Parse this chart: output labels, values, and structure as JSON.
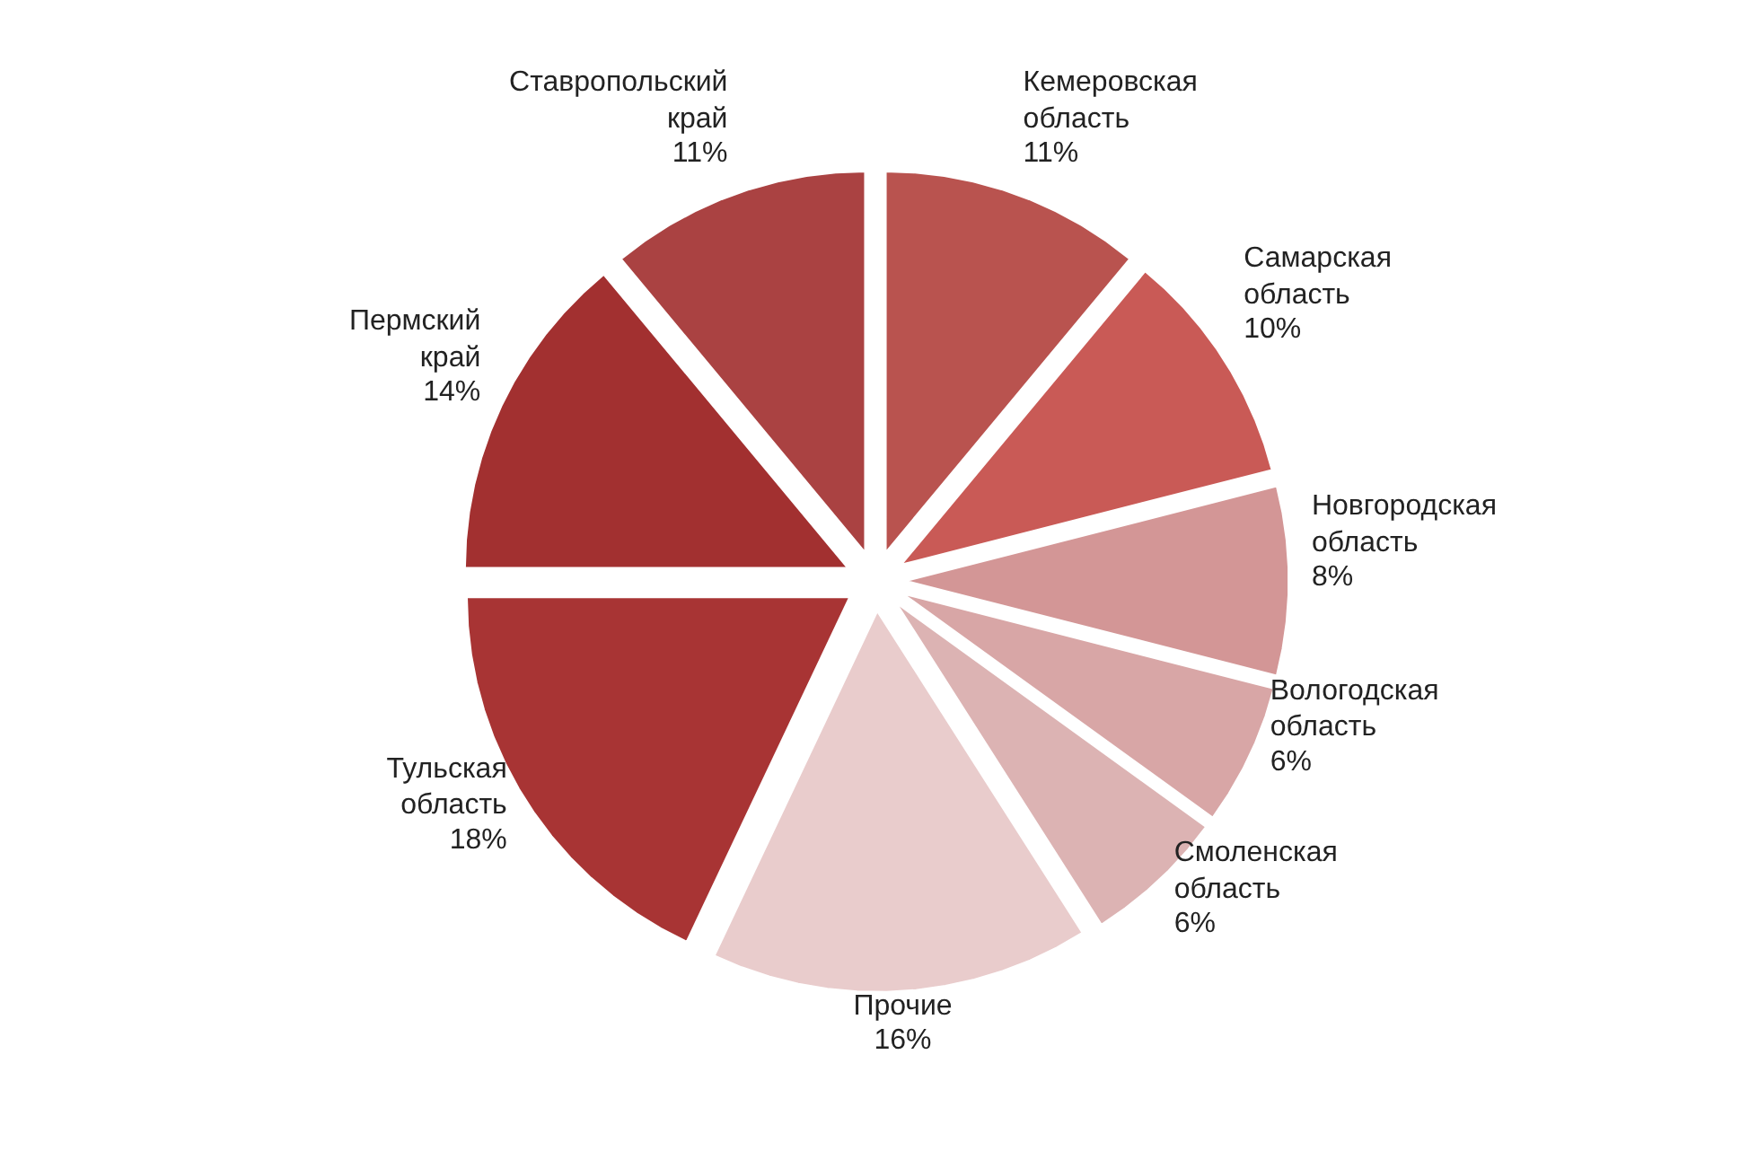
{
  "chart_data": {
    "type": "pie",
    "categories": [
      "Кемеровская область",
      "Самарская область",
      "Новгородская область",
      "Вологодская область",
      "Смоленская область",
      "Прочие",
      "Тульская область",
      "Пермский край",
      "Ставропольский край"
    ],
    "values": [
      11,
      10,
      8,
      6,
      6,
      16,
      18,
      14,
      11
    ],
    "colors": [
      "#b9534f",
      "#c95a56",
      "#d39696",
      "#d8a6a6",
      "#dcb3b3",
      "#e9cccc",
      "#a83434",
      "#a23030",
      "#aa4242"
    ],
    "value_labels": [
      "11%",
      "10%",
      "8%",
      "6%",
      "6%",
      "16%",
      "18%",
      "14%",
      "11%"
    ]
  }
}
